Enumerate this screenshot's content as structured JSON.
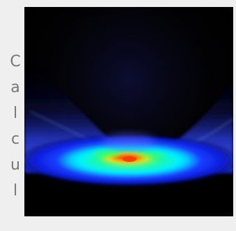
{
  "caption": {
    "letters": [
      "C",
      "a",
      "l",
      "c",
      "u",
      "l"
    ]
  },
  "figure": {
    "kind": "simulation-visualization",
    "background": "#000000",
    "palette": [
      "#0b1bd8",
      "#3f4dff",
      "#00f0ff",
      "#33ff66",
      "#ffe100",
      "#ff6a00",
      "#ff0000"
    ]
  }
}
